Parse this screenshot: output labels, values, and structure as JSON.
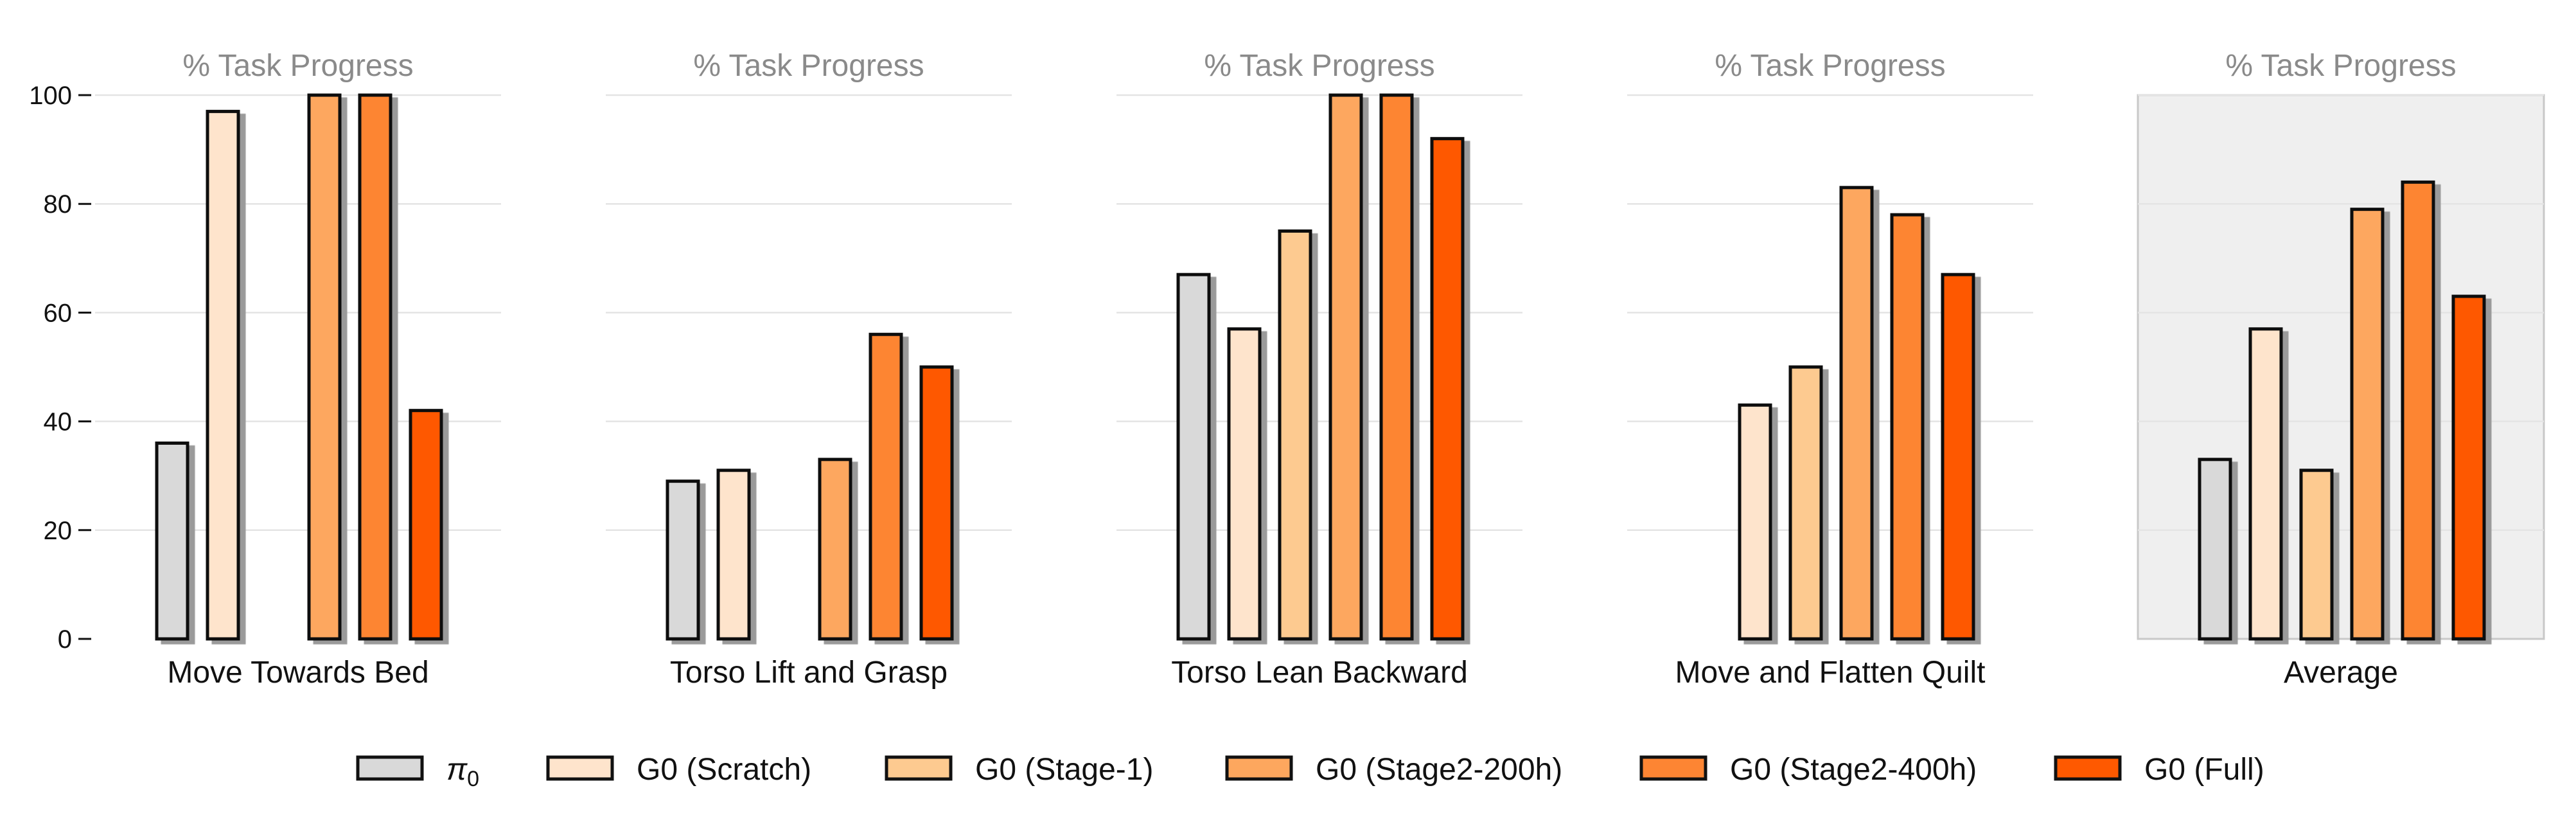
{
  "chart_data": {
    "type": "bar",
    "subtitle": "% Task Progress",
    "ylim": [
      0,
      100
    ],
    "yticks": [
      "0",
      "20",
      "40",
      "60",
      "80",
      "100"
    ],
    "grid": true,
    "legend_position": "bottom",
    "highlighted_panel": "Average",
    "series": [
      {
        "name": "π0",
        "color": "#d9d9d9"
      },
      {
        "name": "G0 (Scratch)",
        "color": "#fee4cc"
      },
      {
        "name": "G0 (Stage-1)",
        "color": "#fdca90"
      },
      {
        "name": "G0 (Stage2-200h)",
        "color": "#fda75e"
      },
      {
        "name": "G0 (Stage2-400h)",
        "color": "#fd8533"
      },
      {
        "name": "G0 (Full)",
        "color": "#fe5900"
      }
    ],
    "panels": [
      {
        "category": "Move Towards Bed",
        "values": [
          36,
          97,
          0,
          100,
          100,
          42
        ]
      },
      {
        "category": "Torso Lift and Grasp",
        "values": [
          29,
          31,
          0,
          33,
          56,
          50
        ]
      },
      {
        "category": "Torso Lean Backward",
        "values": [
          67,
          57,
          75,
          100,
          100,
          92
        ]
      },
      {
        "category": "Move and Flatten Quilt",
        "values": [
          0,
          43,
          50,
          83,
          78,
          67
        ]
      },
      {
        "category": "Average",
        "values": [
          33,
          57,
          31,
          79,
          84,
          63
        ]
      }
    ]
  }
}
